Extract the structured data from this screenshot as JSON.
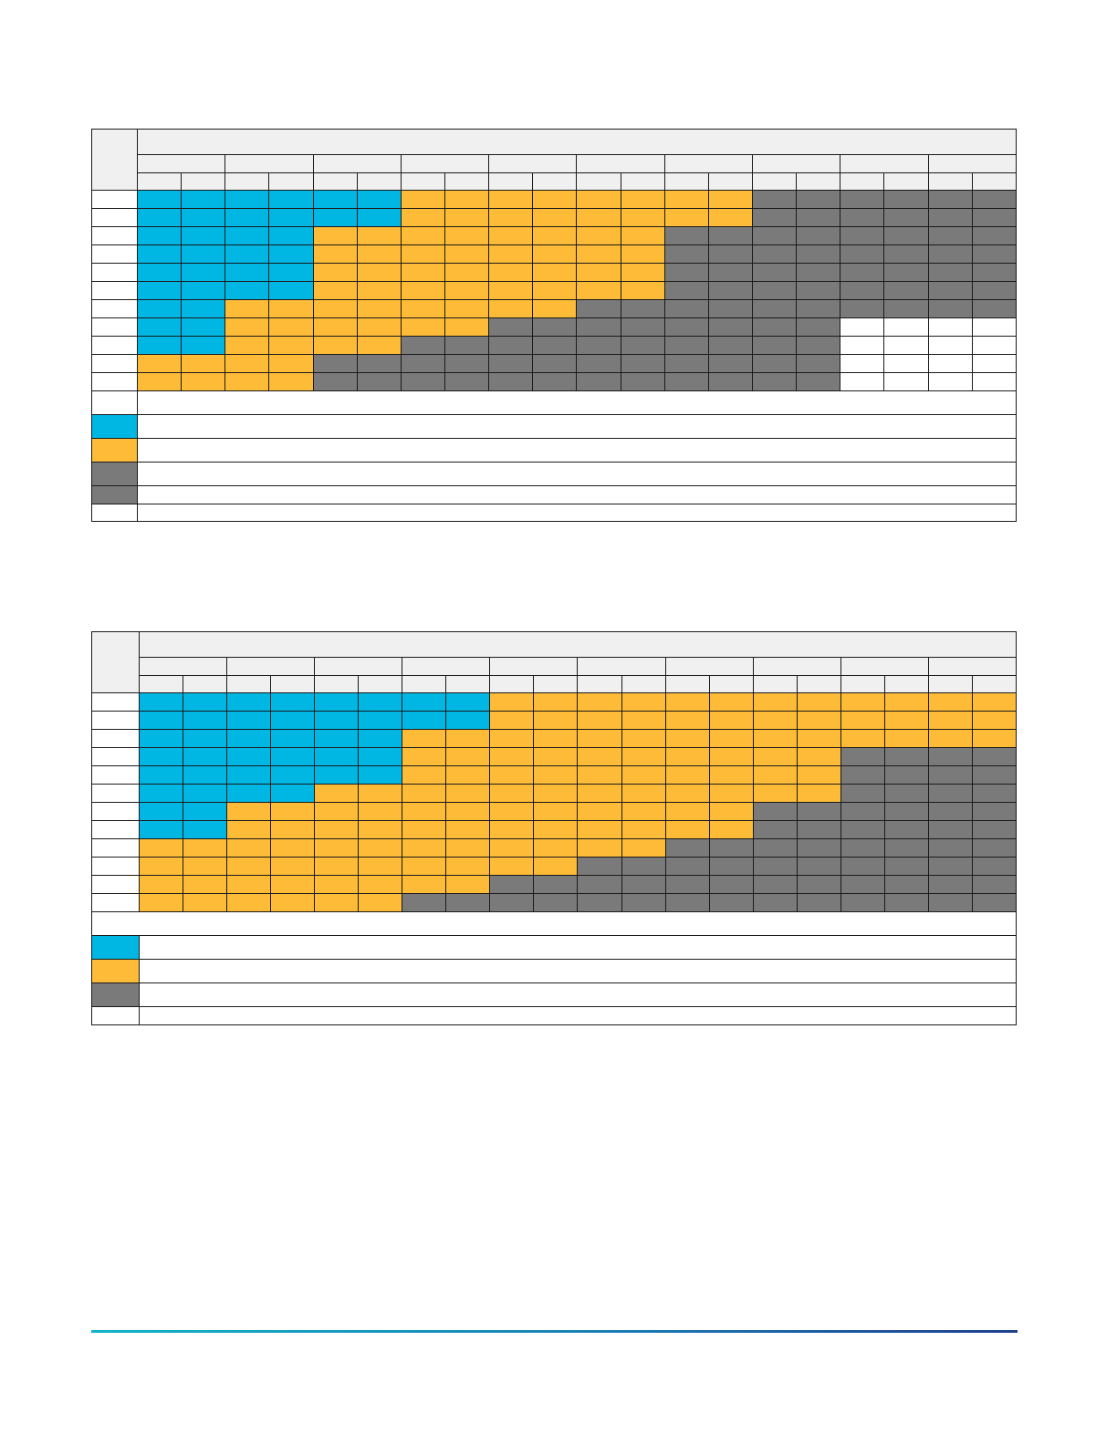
{
  "colors": {
    "blue": "#00b7e3",
    "yellow": "#fdbb37",
    "gray": "#7b7a7b",
    "white": "#ffffff",
    "header": "#f0f0f0",
    "footer_rule_start": "#12b3c7",
    "footer_rule_end": "#1f3f8c"
  },
  "tables": [
    {
      "groups": 10,
      "subcols_per_group": 2,
      "rows": [
        "BBBBBBYYYYYYYYGGGGGGGG",
        "BBBBBBYYYYYYYYGGGGGGGG",
        "BBBBYYYYYYYYGGGGGGGGGG",
        "BBBBYYYYYYYYGGGGGGGGGG",
        "BBBBYYYYYYYYGGGGGGGGWW",
        "BBBBYYYYYYYYGGGGGGGGWW",
        "BBYYYYYYYYGGGGGGGGGGWW",
        "BBYYYYYYGGGGGGGGWWWWWW",
        "BBYYYYGGGGGGGGGGWWWWWW",
        "YYYYGGGGGGGGGGGGWWWWWW",
        "YYYYGGGGGGGGGGGGWWWWWW"
      ],
      "legend": [
        "blank",
        "blue",
        "yellow",
        "gray",
        "gray",
        "white"
      ]
    },
    {
      "groups": 10,
      "subcols_per_group": 2,
      "rows": [
        "BBBBBBBBYYYYYYYYYYYYGG",
        "BBBBBBBBYYYYYYYYYYYYGG",
        "BBBBBBYYYYYYYYYYYYYYGG",
        "BBBBBBYYYYYYYYYYGGGGGG",
        "BBBBBBYYYYYYYYYYGGGGGG",
        "BBBBYYYYYYYYYYYYGGGGGG",
        "BBYYYYYYYYYYYYGGGGGGGG",
        "BBYYYYYYYYYYYYGGGGGGGG",
        "YYYYYYYYYYYYGGGGGGGGGG",
        "YYYYYYYYYYGGGGGGGGGGGG",
        "YYYYYYYYGGGGGGGGGGGGWW",
        "YYYYYYGGGGGGGGGGGGGGWW"
      ],
      "legend": [
        "blank",
        "blue",
        "yellow",
        "gray",
        "white"
      ]
    }
  ]
}
